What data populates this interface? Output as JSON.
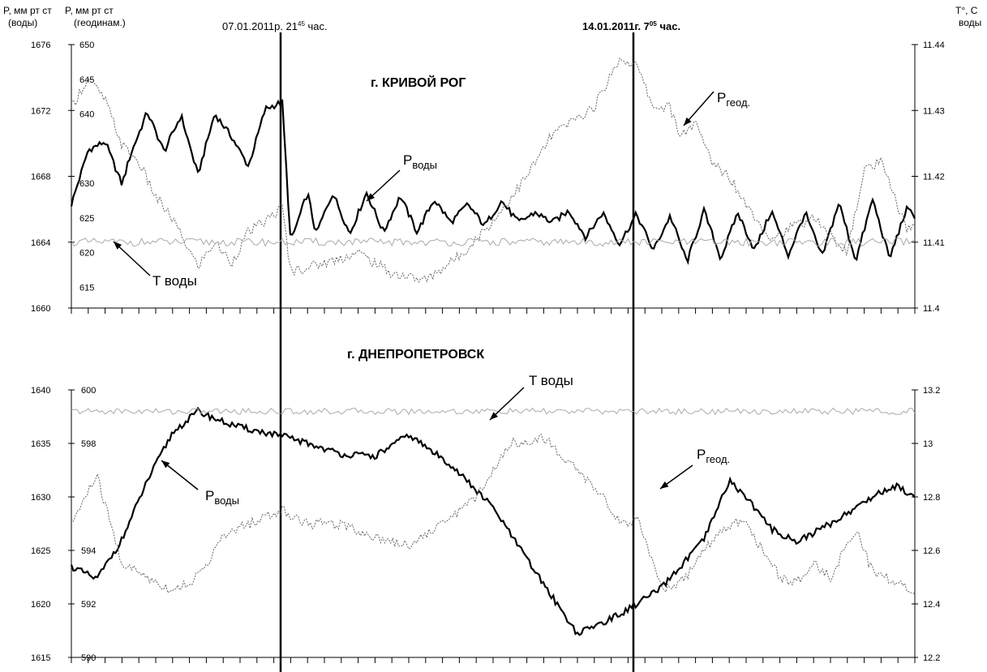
{
  "header": {
    "left_axis_1_line1": "P, мм рт ст",
    "left_axis_1_line2": "(воды)",
    "left_axis_2_line1": "P, мм рт ст",
    "left_axis_2_line2": "(геодинам.)",
    "right_axis_line1": "T°, C",
    "right_axis_line2": "воды"
  },
  "markers": {
    "event1_label": "07.01.2011р. 21",
    "event1_sup": "45",
    "event1_suffix": " час.",
    "event2_label": "14.01.2011г. 7",
    "event2_sup": "05",
    "event2_suffix": " час."
  },
  "chart_data": [
    {
      "type": "line",
      "title": "г.  КРИВОЙ РОГ",
      "xlabel": "",
      "axes": {
        "p_water": {
          "ylim": [
            1660,
            1676
          ],
          "ticks": [
            1660,
            1664,
            1668,
            1672,
            1676
          ]
        },
        "p_geod": {
          "ylim": [
            612,
            650
          ],
          "ticks": [
            615,
            620,
            625,
            630,
            640,
            645,
            650
          ]
        },
        "t_water": {
          "ylim": [
            11.4,
            11.44
          ],
          "ticks": [
            11.4,
            11.41,
            11.42,
            11.43,
            11.44
          ]
        }
      },
      "grid": false,
      "annotations": [
        {
          "text": "P",
          "sub": "воды",
          "target": "p_water"
        },
        {
          "text": "P",
          "sub": "геод.",
          "target": "p_geod"
        },
        {
          "text": "T воды",
          "target": "t_water"
        }
      ],
      "series": [
        {
          "key": "p_water",
          "style": "bold",
          "x": [
            0,
            0.02,
            0.04,
            0.06,
            0.07,
            0.09,
            0.11,
            0.13,
            0.15,
            0.17,
            0.19,
            0.21,
            0.23,
            0.25,
            0.26,
            0.28,
            0.29,
            0.31,
            0.33,
            0.35,
            0.37,
            0.39,
            0.41,
            0.43,
            0.45,
            0.47,
            0.49,
            0.51,
            0.53,
            0.55,
            0.57,
            0.59,
            0.61,
            0.63,
            0.65,
            0.67,
            0.69,
            0.71,
            0.73,
            0.75,
            0.77,
            0.79,
            0.81,
            0.83,
            0.85,
            0.87,
            0.89,
            0.91,
            0.93,
            0.95,
            0.97,
            0.99,
            1.0
          ],
          "values": [
            1666.3,
            1669.6,
            1670.1,
            1667.5,
            1669.3,
            1671.9,
            1669.5,
            1671.7,
            1668.1,
            1671.8,
            1670.4,
            1668.6,
            1672.1,
            1672.5,
            1664.0,
            1667.0,
            1664.5,
            1667.0,
            1664.5,
            1667.0,
            1664.6,
            1666.8,
            1664.6,
            1666.6,
            1665.2,
            1666.3,
            1665.0,
            1666.5,
            1665.2,
            1665.8,
            1665.2,
            1665.9,
            1664.3,
            1665.8,
            1663.9,
            1665.7,
            1663.5,
            1665.6,
            1662.8,
            1665.9,
            1663.0,
            1665.8,
            1663.5,
            1665.9,
            1663.2,
            1665.8,
            1663.1,
            1666.4,
            1662.9,
            1666.6,
            1663.0,
            1666.0,
            1665.6
          ]
        },
        {
          "key": "p_geod",
          "style": "dotted",
          "x": [
            0,
            0.02,
            0.04,
            0.06,
            0.08,
            0.1,
            0.12,
            0.15,
            0.17,
            0.19,
            0.21,
            0.23,
            0.25,
            0.26,
            0.3,
            0.34,
            0.38,
            0.42,
            0.46,
            0.5,
            0.54,
            0.57,
            0.62,
            0.65,
            0.67,
            0.69,
            0.71,
            0.72,
            0.74,
            0.76,
            0.78,
            0.8,
            0.83,
            0.86,
            0.88,
            0.9,
            0.92,
            0.94,
            0.96,
            0.99,
            1.0
          ],
          "values": [
            641.0,
            645.2,
            642.0,
            635.5,
            633.0,
            628.0,
            624.8,
            618.0,
            621.5,
            618.5,
            623.0,
            624.5,
            626.5,
            617.3,
            618.5,
            620.0,
            617.0,
            616.0,
            619.5,
            624.5,
            631.0,
            637.0,
            641.0,
            648.0,
            647.0,
            641.0,
            641.0,
            637.0,
            638.5,
            633.0,
            631.0,
            627.0,
            622.0,
            624.0,
            625.0,
            622.5,
            620.0,
            632.0,
            633.0,
            623.5,
            623.5
          ]
        },
        {
          "key": "t_water",
          "style": "thin",
          "label_value": 11.41,
          "x": [
            0,
            1
          ],
          "values": [
            11.41,
            11.41
          ]
        }
      ]
    },
    {
      "type": "line",
      "title": "г.  ДНЕПРОПЕТРОВСК",
      "xlabel": "",
      "axes": {
        "p_water": {
          "ylim": [
            1615,
            1640
          ],
          "ticks": [
            1615,
            1620,
            1625,
            1630,
            1635,
            1640
          ]
        },
        "p_geod": {
          "ylim": [
            590,
            600
          ],
          "ticks": [
            590,
            592,
            594,
            598,
            600
          ]
        },
        "t_water": {
          "ylim": [
            12.2,
            13.2
          ],
          "ticks": [
            12.2,
            12.4,
            12.6,
            12.8,
            13,
            13.2
          ]
        }
      },
      "grid": false,
      "annotations": [
        {
          "text": "P",
          "sub": "воды",
          "target": "p_water"
        },
        {
          "text": "P",
          "sub": "геод.",
          "target": "p_geod"
        },
        {
          "text": "T воды",
          "target": "t_water"
        }
      ],
      "series": [
        {
          "key": "p_water",
          "style": "bold",
          "x": [
            0,
            0.03,
            0.06,
            0.09,
            0.12,
            0.15,
            0.18,
            0.2,
            0.23,
            0.26,
            0.28,
            0.32,
            0.36,
            0.4,
            0.45,
            0.5,
            0.55,
            0.6,
            0.65,
            0.7,
            0.75,
            0.78,
            0.8,
            0.83,
            0.86,
            0.9,
            0.92,
            0.94,
            0.96,
            0.98,
            1.0
          ],
          "values": [
            1623.5,
            1622.3,
            1626.0,
            1631.5,
            1636.0,
            1638.0,
            1637.0,
            1636.5,
            1636.0,
            1635.5,
            1635.0,
            1634.0,
            1633.8,
            1635.8,
            1633.0,
            1629.0,
            1623.0,
            1617.2,
            1619.0,
            1621.5,
            1626.0,
            1631.5,
            1630.0,
            1627.0,
            1625.8,
            1627.5,
            1628.5,
            1629.5,
            1630.5,
            1631.0,
            1630.0
          ]
        },
        {
          "key": "p_geod",
          "style": "dotted",
          "x": [
            0,
            0.03,
            0.06,
            0.09,
            0.12,
            0.15,
            0.18,
            0.21,
            0.25,
            0.28,
            0.32,
            0.36,
            0.4,
            0.44,
            0.48,
            0.52,
            0.56,
            0.6,
            0.63,
            0.65,
            0.67,
            0.7,
            0.73,
            0.75,
            0.78,
            0.8,
            0.82,
            0.84,
            0.86,
            0.88,
            0.9,
            0.93,
            0.95,
            0.98,
            1.0
          ],
          "values": [
            595.0,
            596.8,
            593.5,
            593.0,
            592.5,
            593.0,
            594.5,
            595.0,
            595.5,
            595.0,
            595.0,
            594.5,
            594.2,
            595.0,
            596.0,
            598.0,
            598.2,
            597.0,
            596.0,
            595.0,
            595.2,
            592.5,
            593.0,
            594.0,
            595.0,
            595.0,
            594.0,
            593.0,
            592.8,
            593.5,
            593.0,
            594.8,
            593.2,
            592.8,
            592.5
          ]
        },
        {
          "key": "t_water",
          "style": "thin",
          "x": [
            0,
            1
          ],
          "values": [
            13.12,
            13.12
          ]
        }
      ]
    }
  ]
}
